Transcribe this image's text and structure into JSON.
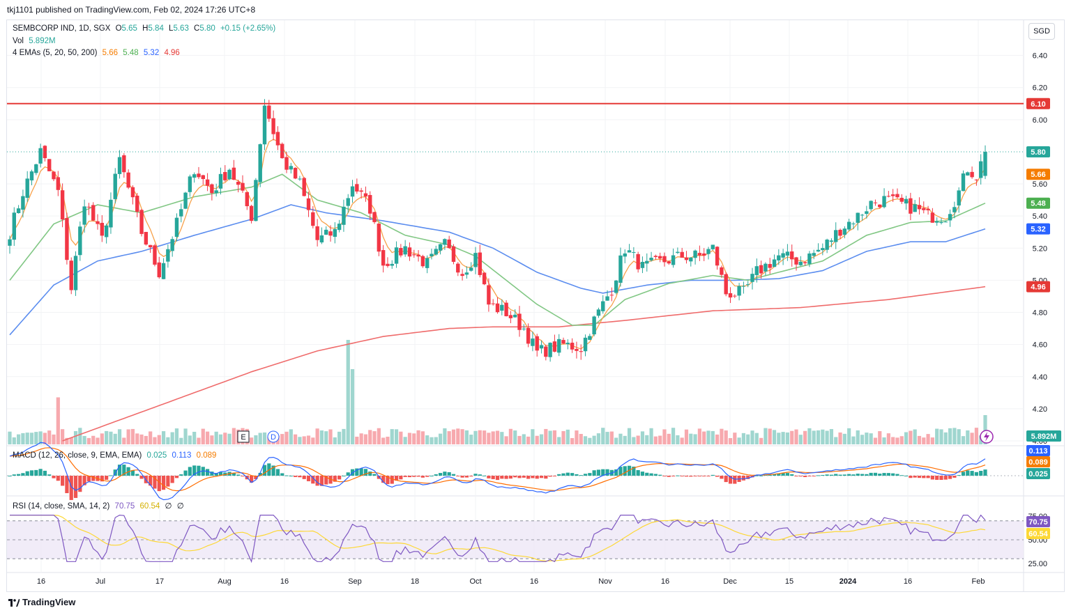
{
  "publisher_line": "tkj1101 published on TradingView.com, Feb 02, 2024 17:26 UTC+8",
  "branding": "TradingView",
  "currency": "SGD",
  "colors": {
    "up": "#26a69a",
    "down": "#f23645",
    "ema5": "#f7a14a",
    "ema20": "#81c784",
    "ema50": "#5b8def",
    "ema200": "#ef6b6b",
    "resistance": "#e53935",
    "macd": "#2962ff",
    "signal": "#ff6d00",
    "rsi": "#7e57c2",
    "rsi_ma": "#fdd835"
  },
  "legend": {
    "symbol": "SEMBCORP IND, 1D, SGX",
    "open_label": "O",
    "open": "5.65",
    "high_label": "H",
    "high": "5.84",
    "low_label": "L",
    "low": "5.63",
    "close_label": "C",
    "close": "5.80",
    "change": "+0.15 (+2.65%)",
    "vol_label": "Vol",
    "vol": "5.892M",
    "ema_label": "4 EMAs (5, 20, 50, 200)",
    "ema_values": [
      "5.66",
      "5.48",
      "5.32",
      "4.96"
    ],
    "macd_label": "MACD (12, 26, close, 9, EMA, EMA)",
    "macd_values": [
      "0.025",
      "0.113",
      "0.089"
    ],
    "rsi_label": "RSI (14, close, SMA, 14, 2)",
    "rsi_values": [
      "70.75",
      "60.54",
      "∅",
      "∅"
    ]
  },
  "chart_data": {
    "type": "candlestick",
    "symbol": "SEMBCORP IND",
    "interval": "1D",
    "exchange": "SGX",
    "y_axis": {
      "range": [
        4.0,
        6.55
      ],
      "ticks": [
        "6.40",
        "6.20",
        "6.00",
        "5.60",
        "5.40",
        "5.20",
        "5.00",
        "4.80",
        "4.60",
        "4.40",
        "4.20",
        "4.00"
      ]
    },
    "x_axis": {
      "ticks": [
        "16",
        "Jul",
        "17",
        "Aug",
        "16",
        "Sep",
        "18",
        "Oct",
        "16",
        "Nov",
        "16",
        "Dec",
        "15",
        "2024",
        "16",
        "Feb"
      ]
    },
    "price_anchors": [
      [
        0,
        5.3
      ],
      [
        3,
        5.55
      ],
      [
        7,
        5.8
      ],
      [
        11,
        5.55
      ],
      [
        14,
        4.95
      ],
      [
        17,
        5.5
      ],
      [
        21,
        5.25
      ],
      [
        25,
        5.75
      ],
      [
        30,
        5.3
      ],
      [
        34,
        5.05
      ],
      [
        38,
        5.35
      ],
      [
        42,
        5.7
      ],
      [
        46,
        5.55
      ],
      [
        50,
        5.7
      ],
      [
        55,
        5.4
      ],
      [
        58,
        6.1
      ],
      [
        62,
        5.75
      ],
      [
        66,
        5.6
      ],
      [
        70,
        5.25
      ],
      [
        74,
        5.3
      ],
      [
        78,
        5.6
      ],
      [
        82,
        5.45
      ],
      [
        85,
        5.1
      ],
      [
        90,
        5.2
      ],
      [
        95,
        5.1
      ],
      [
        99,
        5.22
      ],
      [
        103,
        5.05
      ],
      [
        106,
        5.16
      ],
      [
        109,
        4.85
      ],
      [
        113,
        4.8
      ],
      [
        117,
        4.7
      ],
      [
        120,
        4.55
      ],
      [
        126,
        4.6
      ],
      [
        130,
        4.58
      ],
      [
        133,
        4.75
      ],
      [
        137,
        4.95
      ],
      [
        140,
        5.2
      ],
      [
        144,
        5.08
      ],
      [
        149,
        5.12
      ],
      [
        153,
        5.15
      ],
      [
        157,
        5.15
      ],
      [
        160,
        5.2
      ],
      [
        163,
        4.92
      ],
      [
        167,
        4.92
      ],
      [
        170,
        5.05
      ],
      [
        175,
        5.15
      ],
      [
        180,
        5.12
      ],
      [
        185,
        5.2
      ],
      [
        189,
        5.32
      ],
      [
        193,
        5.4
      ],
      [
        196,
        5.48
      ],
      [
        199,
        5.5
      ],
      [
        202,
        5.48
      ],
      [
        206,
        5.45
      ],
      [
        209,
        5.4
      ],
      [
        213,
        5.4
      ],
      [
        216,
        5.55
      ],
      [
        218,
        5.7
      ],
      [
        220,
        5.65
      ],
      [
        222,
        5.8
      ]
    ],
    "last_bar": {
      "open": 5.65,
      "high": 5.84,
      "low": 5.63,
      "close": 5.8
    },
    "resistance_line": 6.1,
    "price_labels": [
      {
        "label": "6.10",
        "value": 6.1,
        "color": "#e53935"
      },
      {
        "label": "5.80",
        "value": 5.8,
        "color": "#26a69a"
      },
      {
        "label": "5.66",
        "value": 5.66,
        "color": "#f57c00"
      },
      {
        "label": "5.48",
        "value": 5.48,
        "color": "#4caf50"
      },
      {
        "label": "5.32",
        "value": 5.32,
        "color": "#2962ff"
      },
      {
        "label": "4.96",
        "value": 4.96,
        "color": "#e53935"
      }
    ],
    "ema_anchors": {
      "ema20": [
        [
          0,
          5.0
        ],
        [
          10,
          5.35
        ],
        [
          20,
          5.47
        ],
        [
          30,
          5.42
        ],
        [
          42,
          5.52
        ],
        [
          55,
          5.58
        ],
        [
          62,
          5.66
        ],
        [
          70,
          5.5
        ],
        [
          80,
          5.42
        ],
        [
          90,
          5.28
        ],
        [
          100,
          5.22
        ],
        [
          106,
          5.15
        ],
        [
          113,
          5.0
        ],
        [
          120,
          4.85
        ],
        [
          128,
          4.72
        ],
        [
          133,
          4.72
        ],
        [
          140,
          4.88
        ],
        [
          150,
          4.98
        ],
        [
          160,
          5.03
        ],
        [
          168,
          5.0
        ],
        [
          175,
          5.05
        ],
        [
          185,
          5.12
        ],
        [
          195,
          5.28
        ],
        [
          205,
          5.36
        ],
        [
          213,
          5.37
        ],
        [
          222,
          5.48
        ]
      ],
      "ema50": [
        [
          0,
          4.66
        ],
        [
          10,
          4.97
        ],
        [
          20,
          5.12
        ],
        [
          30,
          5.18
        ],
        [
          42,
          5.28
        ],
        [
          55,
          5.38
        ],
        [
          64,
          5.47
        ],
        [
          72,
          5.42
        ],
        [
          85,
          5.37
        ],
        [
          100,
          5.3
        ],
        [
          110,
          5.2
        ],
        [
          120,
          5.05
        ],
        [
          130,
          4.95
        ],
        [
          135,
          4.92
        ],
        [
          145,
          4.97
        ],
        [
          155,
          5.0
        ],
        [
          165,
          5.0
        ],
        [
          175,
          5.01
        ],
        [
          185,
          5.06
        ],
        [
          195,
          5.18
        ],
        [
          205,
          5.24
        ],
        [
          213,
          5.24
        ],
        [
          222,
          5.32
        ]
      ],
      "ema200": [
        [
          12,
          4.0
        ],
        [
          25,
          4.13
        ],
        [
          40,
          4.28
        ],
        [
          55,
          4.43
        ],
        [
          70,
          4.56
        ],
        [
          85,
          4.65
        ],
        [
          100,
          4.7
        ],
        [
          110,
          4.71
        ],
        [
          125,
          4.71
        ],
        [
          140,
          4.75
        ],
        [
          160,
          4.81
        ],
        [
          180,
          4.83
        ],
        [
          200,
          4.88
        ],
        [
          222,
          4.96
        ]
      ]
    },
    "volume": {
      "last": "5.892M",
      "spikes": [
        [
          11,
          0.45
        ],
        [
          77,
          1.0
        ],
        [
          78,
          0.72
        ],
        [
          222,
          0.28
        ]
      ]
    },
    "macd": {
      "macd": 0.113,
      "signal": 0.089,
      "histogram": 0.025
    },
    "rsi": {
      "value": 70.75,
      "ma": 60.54,
      "ticks": [
        "75.00",
        "50.00",
        "25.00"
      ],
      "upper_band": 70,
      "lower_band": 30
    }
  }
}
